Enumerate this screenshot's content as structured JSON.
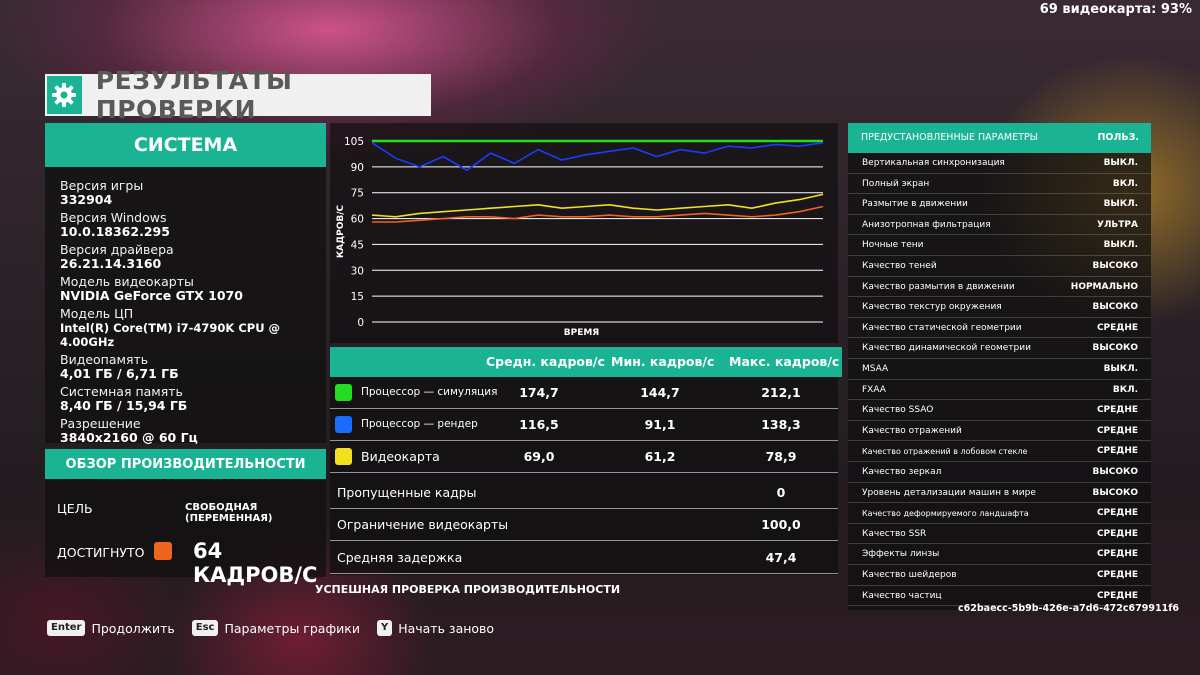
{
  "fps_counter": "69 видеокарта: 93%",
  "header": {
    "title": "РЕЗУЛЬТАТЫ ПРОВЕРКИ",
    "icon": "gear-icon"
  },
  "system": {
    "title": "СИСТЕМА",
    "items": [
      {
        "label": "Версия игры",
        "value": "332904"
      },
      {
        "label": "Версия Windows",
        "value": "10.0.18362.295"
      },
      {
        "label": "Версия драйвера",
        "value": "26.21.14.3160"
      },
      {
        "label": "Модель видеокарты",
        "value": "NVIDIA GeForce GTX 1070"
      },
      {
        "label": "Модель ЦП",
        "value": "Intel(R) Core(TM) i7-4790K CPU @ 4.00GHz"
      },
      {
        "label": "Видеопамять",
        "value": "4,01 ГБ / 6,71 ГБ"
      },
      {
        "label": "Системная память",
        "value": "8,40 ГБ / 15,94 ГБ"
      },
      {
        "label": "Разрешение",
        "value": "3840x2160 @ 60 Гц"
      }
    ]
  },
  "performance": {
    "title": "ОБЗОР ПРОИЗВОДИТЕЛЬНОСТИ",
    "goal_label": "ЦЕЛЬ",
    "goal_value": "СВОБОДНАЯ (ПЕРЕМЕННАЯ)",
    "reached_label": "ДОСТИГНУТО",
    "reached_value": "64 КАДРОВ/С",
    "reached_color": "#f0641e"
  },
  "chart_data": {
    "type": "line",
    "xlabel": "ВРЕМЯ",
    "ylabel": "КАДРОВ/С",
    "y_ticks": [
      "105",
      "90",
      "75",
      "60",
      "45",
      "30",
      "15",
      "0"
    ],
    "ylim": [
      0,
      105
    ],
    "grid": true,
    "series": [
      {
        "color": "#22dd22",
        "values": [
          105,
          105,
          105,
          105,
          105,
          105,
          105,
          105,
          105,
          105,
          105,
          105,
          105,
          105,
          105,
          105,
          105,
          105,
          105,
          105
        ]
      },
      {
        "color": "#1a3cff",
        "values": [
          104,
          95,
          90,
          96,
          88,
          98,
          92,
          100,
          94,
          97,
          99,
          101,
          96,
          100,
          98,
          102,
          101,
          103,
          102,
          104
        ]
      },
      {
        "color": "#f0e020",
        "values": [
          62,
          61,
          63,
          64,
          65,
          66,
          67,
          68,
          66,
          67,
          68,
          66,
          65,
          66,
          67,
          68,
          66,
          69,
          71,
          74
        ]
      },
      {
        "color": "#f0641e",
        "values": [
          58,
          58,
          59,
          60,
          61,
          61,
          60,
          62,
          61,
          61,
          62,
          61,
          61,
          62,
          63,
          62,
          61,
          62,
          64,
          67
        ]
      }
    ]
  },
  "stats": {
    "headers": {
      "avg": "Средн. кадров/с",
      "min": "Мин. кадров/с",
      "max": "Макс. кадров/с"
    },
    "rows": [
      {
        "color": "#22dd22",
        "label": "Процессор — симуляция",
        "avg": "174,7",
        "min": "144,7",
        "max": "212,1"
      },
      {
        "color": "#1a6cff",
        "label": "Процессор — рендер",
        "avg": "116,5",
        "min": "91,1",
        "max": "138,3"
      },
      {
        "color": "#f0e020",
        "label": "Видеокарта",
        "avg": "69,0",
        "min": "61,2",
        "max": "78,9"
      }
    ],
    "extra": [
      {
        "label": "Пропущенные кадры",
        "value": "0"
      },
      {
        "label": "Ограничение видеокарты",
        "value": "100,0"
      },
      {
        "label": "Средняя задержка",
        "value": "47,4"
      }
    ],
    "success": "УСПЕШНАЯ ПРОВЕРКА ПРОИЗВОДИТЕЛЬНОСТИ"
  },
  "settings": {
    "title": "ПРЕДУСТАНОВЛЕННЫЕ ПАРАМЕТРЫ",
    "preset": "ПОЛЬЗ.",
    "items": [
      {
        "name": "Вертикальная синхронизация",
        "value": "ВЫКЛ."
      },
      {
        "name": "Полный экран",
        "value": "ВКЛ."
      },
      {
        "name": "Размытие в движении",
        "value": "ВЫКЛ."
      },
      {
        "name": "Анизотропная фильтрация",
        "value": "УЛЬТРА"
      },
      {
        "name": "Ночные тени",
        "value": "ВЫКЛ."
      },
      {
        "name": "Качество теней",
        "value": "ВЫСОКО"
      },
      {
        "name": "Качество размытия в движении",
        "value": "НОРМАЛЬНО"
      },
      {
        "name": "Качество текстур окружения",
        "value": "ВЫСОКО"
      },
      {
        "name": "Качество статической геометрии",
        "value": "СРЕДНЕ"
      },
      {
        "name": "Качество динамической геометрии",
        "value": "ВЫСОКО"
      },
      {
        "name": "MSAA",
        "value": "ВЫКЛ."
      },
      {
        "name": "FXAA",
        "value": "ВКЛ."
      },
      {
        "name": "Качество SSAO",
        "value": "СРЕДНЕ"
      },
      {
        "name": "Качество отражений",
        "value": "СРЕДНЕ"
      },
      {
        "name": "Качество отражений в лобовом стекле",
        "value": "СРЕДНЕ"
      },
      {
        "name": "Качество зеркал",
        "value": "ВЫСОКО"
      },
      {
        "name": "Уровень детализации машин в мире",
        "value": "ВЫСОКО"
      },
      {
        "name": "Качество деформируемого ландшафта",
        "value": "СРЕДНЕ"
      },
      {
        "name": "Качество SSR",
        "value": "СРЕДНЕ"
      },
      {
        "name": "Эффекты линзы",
        "value": "СРЕДНЕ"
      },
      {
        "name": "Качество шейдеров",
        "value": "СРЕДНЕ"
      },
      {
        "name": "Качество частиц",
        "value": "СРЕДНЕ"
      }
    ],
    "hash": "c62baecc-5b9b-426e-a7d6-472c679911f6"
  },
  "footer": {
    "keys": [
      {
        "key": "Enter",
        "label": "Продолжить"
      },
      {
        "key": "Esc",
        "label": "Параметры графики"
      },
      {
        "key": "Y",
        "label": "Начать заново"
      }
    ]
  }
}
